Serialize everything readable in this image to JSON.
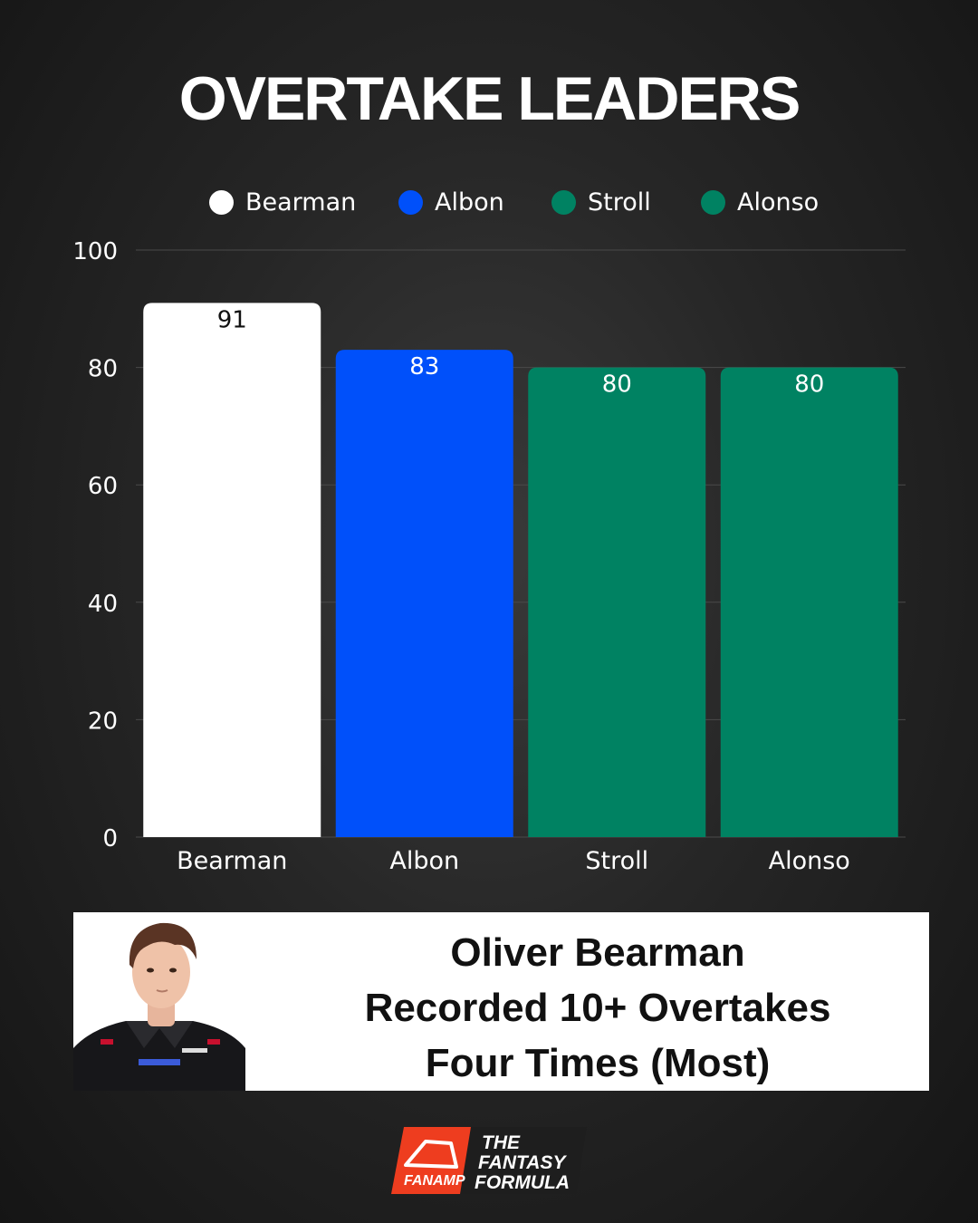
{
  "title": "OVERTAKE LEADERS",
  "chart_data": {
    "type": "bar",
    "categories": [
      "Bearman",
      "Albon",
      "Stroll",
      "Alonso"
    ],
    "values": [
      91,
      83,
      80,
      80
    ],
    "colors": [
      "#ffffff",
      "#0050fa",
      "#008262",
      "#008262"
    ],
    "label_colors": [
      "#111111",
      "#ffffff",
      "#ffffff",
      "#ffffff"
    ],
    "ylim": [
      0,
      100
    ],
    "yticks": [
      0,
      20,
      40,
      60,
      80,
      100
    ],
    "grid": true,
    "legend": {
      "position": "top",
      "entries": [
        {
          "label": "Bearman",
          "color": "#ffffff"
        },
        {
          "label": "Albon",
          "color": "#0050fa"
        },
        {
          "label": "Stroll",
          "color": "#008262"
        },
        {
          "label": "Alonso",
          "color": "#008262"
        }
      ]
    }
  },
  "callout": {
    "lines": [
      "Oliver Bearman",
      "Recorded 10+ Overtakes",
      "Four Times (Most)"
    ]
  },
  "logo": {
    "brand_left": "FANAMP",
    "brand_right": [
      "THE",
      "FANTASY",
      "FORMULA"
    ]
  },
  "icons": {
    "portrait": "driver-portrait-icon",
    "logo": "fanamp-logo-icon"
  }
}
